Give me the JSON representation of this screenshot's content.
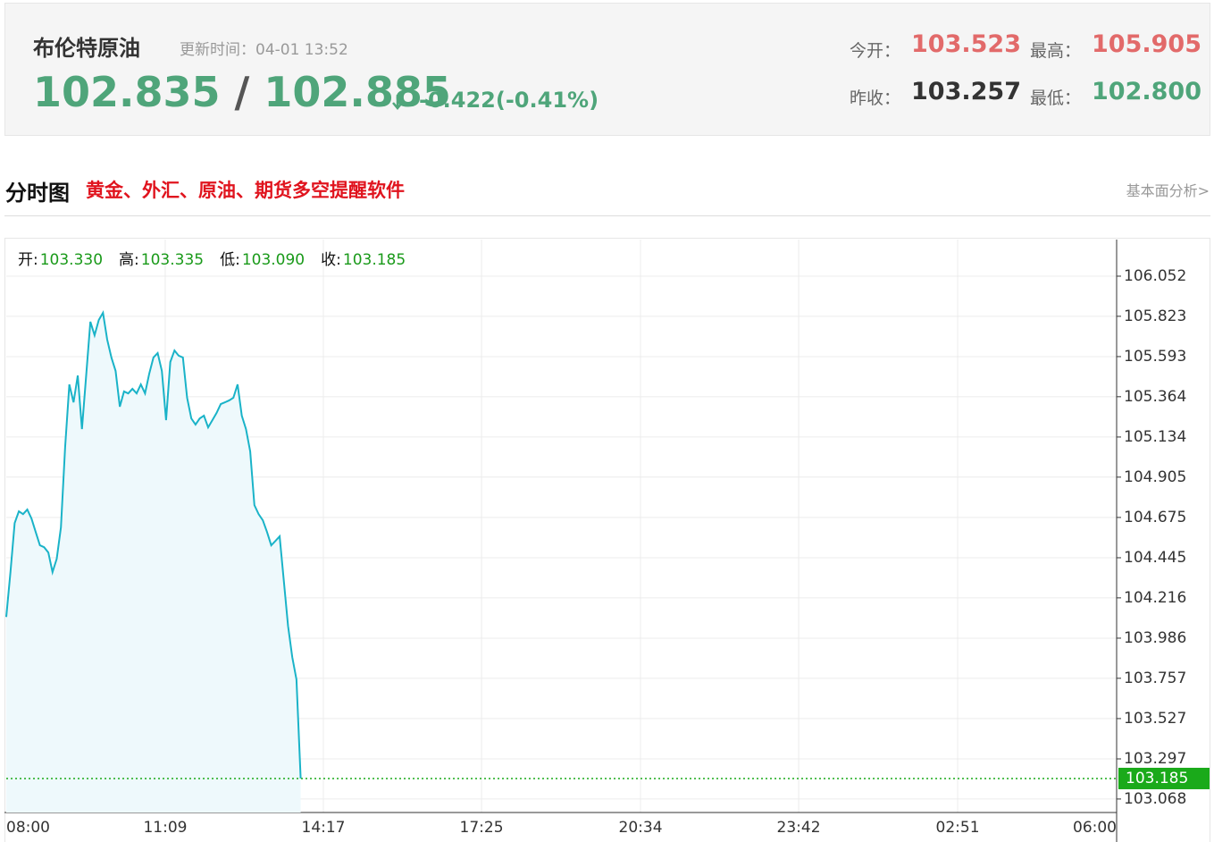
{
  "header": {
    "name": "布伦特原油",
    "update_label": "更新时间：",
    "update_time": "04-01 13:52",
    "bid": "102.835",
    "separator": "/",
    "ask": "102.885",
    "change": "-0.422(-0.41%)",
    "open_label": "今开：",
    "open": "103.523",
    "high_label": "最高：",
    "high": "105.905",
    "prev_close_label": "昨收：",
    "prev_close": "103.257",
    "low_label": "最低：",
    "low": "102.800"
  },
  "section": {
    "title": "分时图",
    "promo": "黄金、外汇、原油、期货多空提醒软件",
    "link": "基本面分析>"
  },
  "chart_data": {
    "type": "line",
    "ohlc": [
      {
        "label": "开:",
        "value": "103.330"
      },
      {
        "label": "高:",
        "value": "103.335"
      },
      {
        "label": "低:",
        "value": "103.090"
      },
      {
        "label": "收:",
        "value": "103.185"
      }
    ],
    "x": [
      "08:00",
      "08:05",
      "08:10",
      "08:15",
      "08:20",
      "08:25",
      "08:30",
      "08:35",
      "08:40",
      "08:45",
      "08:50",
      "08:55",
      "09:00",
      "09:05",
      "09:10",
      "09:15",
      "09:20",
      "09:25",
      "09:30",
      "09:35",
      "09:40",
      "09:45",
      "09:50",
      "09:55",
      "10:00",
      "10:05",
      "10:10",
      "10:15",
      "10:20",
      "10:25",
      "10:30",
      "10:35",
      "10:40",
      "10:45",
      "10:50",
      "10:55",
      "11:00",
      "11:05",
      "11:10",
      "11:15",
      "11:20",
      "11:25",
      "11:30",
      "11:35",
      "11:40",
      "11:45",
      "11:50",
      "11:55",
      "12:00",
      "12:05",
      "12:10",
      "12:15",
      "12:20",
      "12:25",
      "12:30",
      "12:35",
      "12:40",
      "12:45",
      "12:50",
      "12:55",
      "13:00",
      "13:05",
      "13:10",
      "13:15",
      "13:20",
      "13:25",
      "13:30",
      "13:35",
      "13:40",
      "13:45",
      "13:50"
    ],
    "values": [
      104.107,
      104.363,
      104.643,
      104.71,
      104.694,
      104.72,
      104.669,
      104.592,
      104.516,
      104.505,
      104.475,
      104.363,
      104.439,
      104.618,
      105.077,
      105.434,
      105.332,
      105.485,
      105.179,
      105.485,
      105.792,
      105.715,
      105.802,
      105.843,
      105.69,
      105.588,
      105.511,
      105.307,
      105.394,
      105.383,
      105.409,
      105.383,
      105.434,
      105.383,
      105.496,
      105.588,
      105.613,
      105.511,
      105.23,
      105.562,
      105.628,
      105.598,
      105.588,
      105.358,
      105.24,
      105.205,
      105.24,
      105.256,
      105.189,
      105.23,
      105.271,
      105.322,
      105.332,
      105.343,
      105.358,
      105.434,
      105.256,
      105.179,
      105.052,
      104.745,
      104.694,
      104.659,
      104.592,
      104.516,
      104.541,
      104.567,
      104.312,
      104.056,
      103.878,
      103.75,
      103.185
    ],
    "color": "#1ab3c8",
    "last_value": 103.185,
    "last_color": "#1aaa1a",
    "xlim": [
      "08:00",
      "06:00"
    ],
    "xticks": [
      "08:00",
      "11:09",
      "14:17",
      "17:25",
      "20:34",
      "23:42",
      "02:51",
      "06:00"
    ],
    "ylim": [
      102.991,
      106.261
    ],
    "yticks": [
      103.068,
      103.297,
      103.527,
      103.757,
      103.986,
      104.216,
      104.445,
      104.675,
      104.905,
      105.134,
      105.364,
      105.593,
      105.823,
      106.052
    ],
    "grid": true
  }
}
